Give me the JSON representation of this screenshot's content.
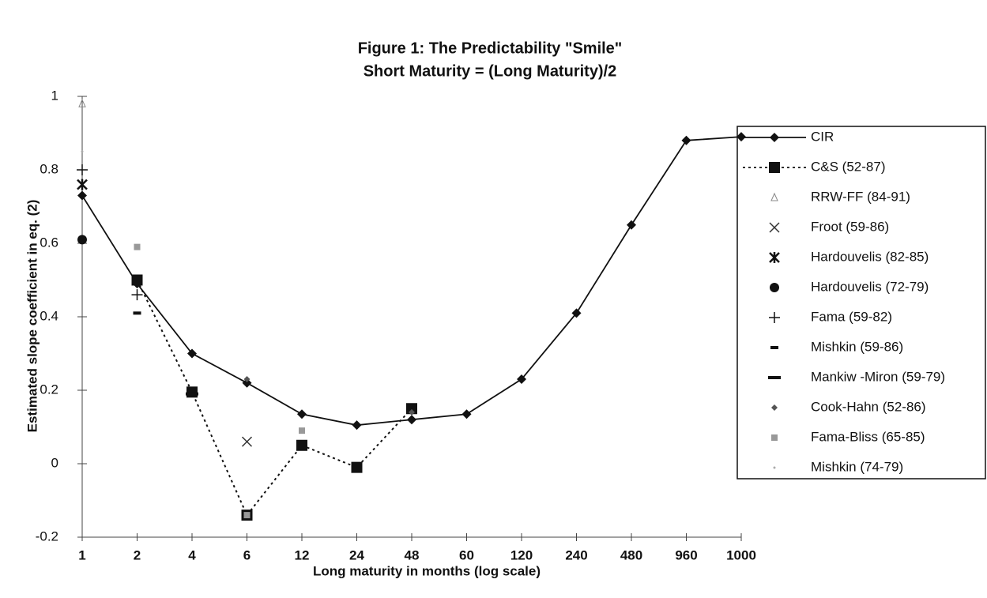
{
  "chart_data": {
    "type": "line",
    "title": "Figure 1:  The Predictability \"Smile\"",
    "subtitle": "Short Maturity = (Long Maturity)/2",
    "x_label": "Long maturity in months (log scale)",
    "y_label": "Estimated slope coefficient in eq. (2)",
    "categories": [
      "1",
      "2",
      "4",
      "6",
      "12",
      "24",
      "48",
      "60",
      "120",
      "240",
      "480",
      "960",
      "1000"
    ],
    "ylim": [
      -0.2,
      1
    ],
    "yticks": [
      -0.2,
      0,
      0.2,
      0.4,
      0.6,
      0.8,
      1
    ],
    "series": [
      {
        "name": "CIR",
        "color": "#111111",
        "line": "solid",
        "marker": "diamond",
        "values": [
          0.73,
          0.49,
          0.3,
          0.22,
          0.135,
          0.105,
          0.12,
          0.135,
          0.23,
          0.41,
          0.65,
          0.88,
          0.89
        ]
      },
      {
        "name": "C&S (52-87)",
        "color": "#111111",
        "line": "dotted",
        "marker": "square",
        "values": [
          null,
          0.5,
          0.195,
          -0.14,
          0.05,
          -0.01,
          0.15,
          null,
          null,
          null,
          null,
          null,
          null
        ]
      },
      {
        "name": "RRW-FF (84-91)",
        "color": "#888888",
        "line": "none",
        "marker": "triangle",
        "values": [
          0.98,
          null,
          null,
          null,
          null,
          null,
          null,
          null,
          null,
          null,
          null,
          null,
          null
        ]
      },
      {
        "name": "Froot (59-86)",
        "color": "#333333",
        "line": "none",
        "marker": "x",
        "values": [
          null,
          null,
          null,
          0.06,
          null,
          null,
          null,
          null,
          null,
          null,
          null,
          null,
          null
        ]
      },
      {
        "name": "Hardouvelis (82-85)",
        "color": "#111111",
        "line": "none",
        "marker": "asterisk",
        "values": [
          0.76,
          null,
          null,
          null,
          null,
          null,
          null,
          null,
          null,
          null,
          null,
          null,
          null
        ]
      },
      {
        "name": "Hardouvelis (72-79)",
        "color": "#111111",
        "line": "none",
        "marker": "circle",
        "values": [
          0.61,
          null,
          null,
          null,
          null,
          null,
          null,
          null,
          null,
          null,
          null,
          null,
          null
        ]
      },
      {
        "name": "Fama (59-82)",
        "color": "#111111",
        "line": "none",
        "marker": "plus",
        "values": [
          0.8,
          0.46,
          null,
          null,
          null,
          null,
          null,
          null,
          null,
          null,
          null,
          null,
          null
        ]
      },
      {
        "name": "Mishkin (59-86)",
        "color": "#111111",
        "line": "none",
        "marker": "dash",
        "values": [
          null,
          0.41,
          null,
          null,
          null,
          null,
          null,
          null,
          null,
          null,
          null,
          null,
          null
        ]
      },
      {
        "name": "Mankiw -Miron (59-79)",
        "color": "#111111",
        "line": "none",
        "marker": "wide-dash",
        "values": [
          null,
          null,
          0.19,
          null,
          null,
          null,
          null,
          null,
          null,
          null,
          null,
          null,
          null
        ]
      },
      {
        "name": "Cook-Hahn (52-86)",
        "color": "#555555",
        "line": "none",
        "marker": "small-diamond",
        "values": [
          null,
          null,
          null,
          0.23,
          null,
          null,
          0.14,
          null,
          null,
          null,
          null,
          null,
          null
        ]
      },
      {
        "name": "Fama-Bliss (65-85)",
        "color": "#999999",
        "line": "none",
        "marker": "grey-square",
        "values": [
          null,
          0.59,
          null,
          -0.14,
          0.09,
          null,
          null,
          null,
          null,
          null,
          null,
          null,
          null
        ]
      },
      {
        "name": "Mishkin (74-79)",
        "color": "#aaaaaa",
        "line": "none",
        "marker": "dot",
        "values": [
          0.85,
          null,
          null,
          null,
          null,
          null,
          null,
          null,
          null,
          null,
          null,
          null,
          null
        ]
      }
    ]
  }
}
